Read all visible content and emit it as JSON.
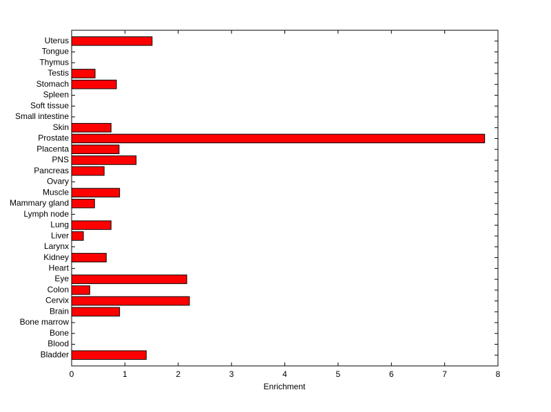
{
  "chart_data": {
    "type": "barh",
    "xlabel": "Enrichment",
    "categories": [
      "Bladder",
      "Blood",
      "Bone",
      "Bone marrow",
      "Brain",
      "Cervix",
      "Colon",
      "Eye",
      "Heart",
      "Kidney",
      "Larynx",
      "Liver",
      "Lung",
      "Lymph node",
      "Mammary gland",
      "Muscle",
      "Ovary",
      "Pancreas",
      "PNS",
      "Placenta",
      "Prostate",
      "Skin",
      "Small intestine",
      "Soft tissue",
      "Spleen",
      "Stomach",
      "Testis",
      "Thymus",
      "Tongue",
      "Uterus"
    ],
    "values": [
      1.4,
      0,
      0,
      0,
      0.9,
      2.21,
      0.34,
      2.16,
      0,
      0.65,
      0,
      0.22,
      0.74,
      0,
      0.43,
      0.9,
      0,
      0.61,
      1.21,
      0.89,
      7.75,
      0.74,
      0,
      0,
      0,
      0.84,
      0.44,
      0,
      0,
      1.51
    ],
    "color": "#ff0000",
    "xlim": [
      0,
      8
    ],
    "xticks": [
      0,
      1,
      2,
      3,
      4,
      5,
      6,
      7,
      8
    ]
  }
}
